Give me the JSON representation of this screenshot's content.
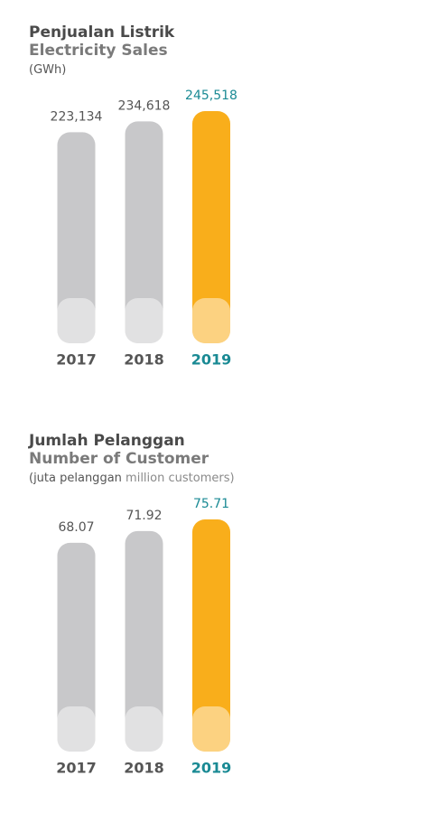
{
  "chart_data": [
    {
      "type": "bar",
      "title": "Penjualan Listrik",
      "subtitle": "Electricity Sales",
      "unit": "(GWh)",
      "categories": [
        "2017",
        "2018",
        "2019"
      ],
      "values": [
        223134,
        234618,
        245518
      ],
      "value_labels": [
        "223,134",
        "234,618",
        "245,518"
      ],
      "colors": [
        "#c8c8ca",
        "#c8c8ca",
        "#f9ae1b"
      ],
      "label_colors": [
        "#555555",
        "#555555",
        "#1a8a94"
      ]
    },
    {
      "type": "bar",
      "title": "Jumlah Pelanggan",
      "subtitle": "Number of Customer",
      "unit": "(juta pelanggan",
      "unit_en": "million customers)",
      "categories": [
        "2017",
        "2018",
        "2019"
      ],
      "values": [
        68.07,
        71.92,
        75.71
      ],
      "colors": [
        "#c8c8ca",
        "#c8c8ca",
        "#f9ae1b"
      ],
      "label_colors": [
        "#555555",
        "#555555",
        "#1a8a94"
      ]
    }
  ]
}
